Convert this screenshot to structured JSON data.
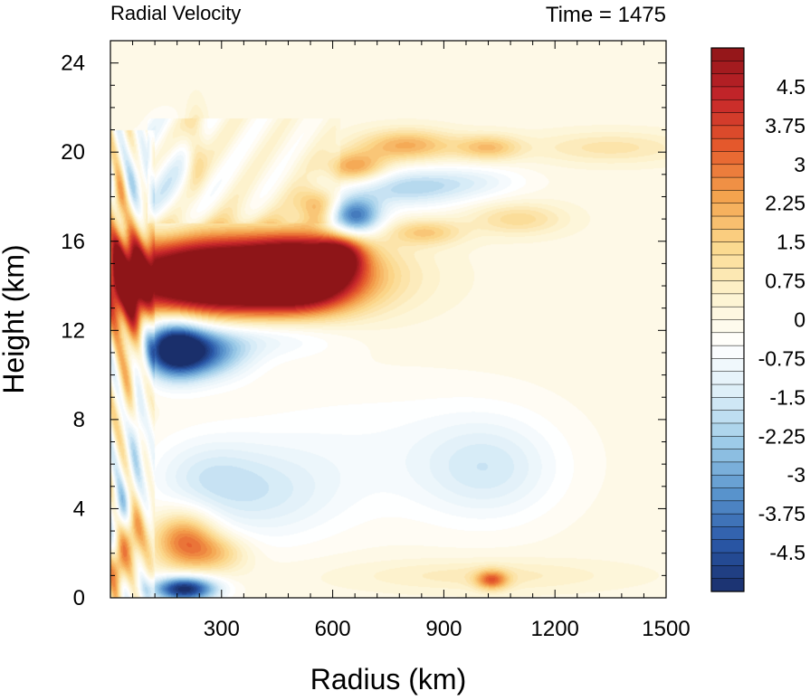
{
  "chart_data": {
    "type": "heatmap",
    "title": "Radial Velocity",
    "subtitle": "Time = 1475",
    "xlabel": "Radius (km)",
    "ylabel": "Height (km)",
    "xlim": [
      0,
      1500
    ],
    "ylim": [
      0,
      25
    ],
    "xticks": [
      "300",
      "600",
      "900",
      "1200",
      "1500"
    ],
    "xtick_values": [
      300,
      600,
      900,
      1200,
      1500
    ],
    "yticks": [
      "0",
      "4",
      "8",
      "12",
      "16",
      "20",
      "24"
    ],
    "ytick_values": [
      0,
      4,
      8,
      12,
      16,
      20,
      24
    ],
    "colorbar": {
      "min": -5.25,
      "max": 5.25,
      "step": 0.25,
      "labels": [
        "4.5",
        "3.75",
        "3",
        "2.25",
        "1.5",
        "0.75",
        "0",
        "-0.75",
        "-1.5",
        "-2.25",
        "-3",
        "-3.75",
        "-4.5"
      ],
      "label_values": [
        4.5,
        3.75,
        3,
        2.25,
        1.5,
        0.75,
        0,
        -0.75,
        -1.5,
        -2.25,
        -3,
        -3.75,
        -4.5
      ],
      "colors": [
        "#1a2f6b",
        "#2a58a8",
        "#5a95cd",
        "#9ccbe8",
        "#dceef8",
        "#ffffff",
        "#fdf3cf",
        "#fbd88c",
        "#f4a24d",
        "#e55a2c",
        "#c5252a",
        "#8e1518"
      ]
    },
    "features": [
      {
        "r": 310,
        "z": 14.4,
        "sr": 230,
        "sz": 1.2,
        "v": 9.0
      },
      {
        "r": 520,
        "z": 14.6,
        "sr": 90,
        "sz": 1.0,
        "v": 5.0
      },
      {
        "r": 620,
        "z": 15.4,
        "sr": 45,
        "sz": 0.6,
        "v": 3.0
      },
      {
        "r": 170,
        "z": 11.2,
        "sr": 60,
        "sz": 0.9,
        "v": -5.5
      },
      {
        "r": 260,
        "z": 11.0,
        "sr": 80,
        "sz": 0.8,
        "v": -3.0
      },
      {
        "r": 420,
        "z": 11.8,
        "sr": 140,
        "sz": 0.7,
        "v": -1.3
      },
      {
        "r": 800,
        "z": 20.3,
        "sr": 90,
        "sz": 0.5,
        "v": 2.2
      },
      {
        "r": 660,
        "z": 19.3,
        "sr": 60,
        "sz": 0.5,
        "v": 2.5
      },
      {
        "r": 550,
        "z": 17.7,
        "sr": 40,
        "sz": 0.6,
        "v": 2.3
      },
      {
        "r": 1020,
        "z": 20.2,
        "sr": 60,
        "sz": 0.4,
        "v": 1.8
      },
      {
        "r": 1350,
        "z": 20.2,
        "sr": 150,
        "sz": 0.5,
        "v": 1.0
      },
      {
        "r": 850,
        "z": 16.4,
        "sr": 70,
        "sz": 0.4,
        "v": 1.6
      },
      {
        "r": 1100,
        "z": 17.0,
        "sr": 90,
        "sz": 0.5,
        "v": 1.3
      },
      {
        "r": 660,
        "z": 17.1,
        "sr": 50,
        "sz": 0.6,
        "v": -4.0
      },
      {
        "r": 800,
        "z": 18.4,
        "sr": 120,
        "sz": 0.6,
        "v": -2.0
      },
      {
        "r": 990,
        "z": 18.7,
        "sr": 100,
        "sz": 0.5,
        "v": -0.8
      },
      {
        "r": 1020,
        "z": 5.8,
        "sr": 130,
        "sz": 1.6,
        "v": -1.3
      },
      {
        "r": 700,
        "z": 6.5,
        "sr": 300,
        "sz": 2.2,
        "v": -0.6
      },
      {
        "r": 400,
        "z": 4.6,
        "sr": 150,
        "sz": 1.5,
        "v": -1.2
      },
      {
        "r": 250,
        "z": 5.5,
        "sr": 100,
        "sz": 1.2,
        "v": -0.9
      },
      {
        "r": 200,
        "z": 2.6,
        "sr": 60,
        "sz": 0.9,
        "v": 3.0
      },
      {
        "r": 290,
        "z": 2.0,
        "sr": 60,
        "sz": 0.6,
        "v": 1.5
      },
      {
        "r": 200,
        "z": 0.4,
        "sr": 60,
        "sz": 0.4,
        "v": -5.5
      },
      {
        "r": 1030,
        "z": 0.8,
        "sr": 30,
        "sz": 0.3,
        "v": 2.8
      },
      {
        "r": 1000,
        "z": 1.0,
        "sr": 250,
        "sz": 0.5,
        "v": 0.8
      },
      {
        "r": 60,
        "z": 12.5,
        "sr": 25,
        "sz": 3.0,
        "v": 3.0
      },
      {
        "r": 20,
        "z": 14.5,
        "sr": 15,
        "sz": 1.5,
        "v": 2.5
      },
      {
        "r": 20,
        "z": 1.4,
        "sr": 15,
        "sz": 0.8,
        "v": 3.0
      },
      {
        "r": 60,
        "z": 3.0,
        "sr": 20,
        "sz": 1.0,
        "v": 2.5
      },
      {
        "r": 30,
        "z": 4.0,
        "sr": 18,
        "sz": 0.8,
        "v": -2.0
      },
      {
        "r": 70,
        "z": 8.0,
        "sr": 15,
        "sz": 2.0,
        "v": -2.0
      },
      {
        "r": 22,
        "z": 18.0,
        "sr": 15,
        "sz": 0.8,
        "v": 2.0
      },
      {
        "r": 60,
        "z": 18.5,
        "sr": 20,
        "sz": 1.0,
        "v": -1.5
      },
      {
        "r": 230,
        "z": 20.2,
        "sr": 20,
        "sz": 1.2,
        "v": 1.5
      },
      {
        "r": 150,
        "z": 18.5,
        "sr": 60,
        "sz": 1.8,
        "v": -0.9
      }
    ]
  }
}
